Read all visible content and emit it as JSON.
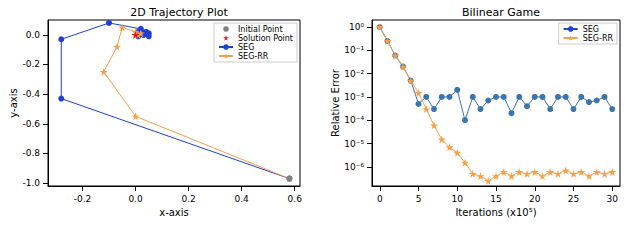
{
  "chart_data": [
    {
      "type": "line",
      "title": "2D Trajectory Plot",
      "x_label": "x-axis",
      "y_label": "y-axis",
      "xlim": [
        -0.33,
        0.62
      ],
      "xticks": [
        -0.2,
        {
          "value": 0,
          "label": "0.0"
        },
        0.2,
        0.4,
        0.6
      ],
      "ylim": [
        -1.02,
        0.1
      ],
      "yticks": [
        {
          "value": -1,
          "label": "-1.0"
        },
        -0.8,
        -0.6,
        -0.4,
        -0.2,
        {
          "value": 0,
          "label": "0.0"
        }
      ],
      "grid": false,
      "legend": "upper right",
      "series": [
        {
          "name": "Initial Point",
          "color": "#808080",
          "marker": "circle",
          "line_style": "none",
          "x": [
            0.58
          ],
          "values": [
            -0.97
          ]
        },
        {
          "name": "Solution Point",
          "color": "#e41a1c",
          "marker": "star",
          "line_style": "none",
          "x": [
            0.0
          ],
          "values": [
            0.0
          ]
        },
        {
          "name": "SEG",
          "color": "#1f3fd6",
          "marker": "circle",
          "line_style": "solid",
          "x": [
            0.58,
            -0.28,
            -0.28,
            -0.1,
            0.02,
            0.05,
            0.01,
            0.04,
            0.02,
            0.05,
            0.03,
            0.01,
            0.04,
            0.03
          ],
          "values": [
            -0.97,
            -0.43,
            -0.03,
            0.08,
            0.04,
            0.01,
            -0.01,
            0.02,
            0.03,
            -0.01,
            0.0,
            0.02,
            0.01,
            0.0
          ]
        },
        {
          "name": "SEG-RR",
          "color": "#f5a04a",
          "marker": "star",
          "line_style": "solid",
          "x": [
            0.58,
            0.0,
            -0.12,
            -0.07,
            -0.05,
            0.0,
            0.02,
            0.01,
            0.0
          ],
          "values": [
            -0.97,
            -0.55,
            -0.25,
            -0.08,
            0.05,
            0.02,
            0.01,
            0.0,
            0.0
          ]
        }
      ]
    },
    {
      "type": "line",
      "title": "Bilinear Game",
      "x_label": "Iterations (x10⁵)",
      "y_label": "Relative Error",
      "log": "y",
      "xlim": [
        -1,
        31
      ],
      "xticks": [
        0,
        5,
        10,
        15,
        20,
        25,
        30
      ],
      "ylim": [
        1.5e-07,
        2
      ],
      "yticks": [
        {
          "value": 1e-06,
          "label": "10⁻⁶"
        },
        {
          "value": 1e-05,
          "label": "10⁻⁵"
        },
        {
          "value": 0.0001,
          "label": "10⁻⁴"
        },
        {
          "value": 0.001,
          "label": "10⁻³"
        },
        {
          "value": 0.01,
          "label": "10⁻²"
        },
        {
          "value": 0.1,
          "label": "10⁻¹"
        },
        {
          "value": 1,
          "label": "10⁰"
        }
      ],
      "grid": false,
      "legend": "upper right",
      "series": [
        {
          "name": "SEG",
          "color": "#3b75af",
          "marker": "circle",
          "line_style": "solid",
          "x": [
            0,
            1,
            2,
            3,
            4,
            5,
            6,
            7,
            8,
            9,
            10,
            11,
            12,
            13,
            14,
            15,
            16,
            17,
            18,
            19,
            20,
            21,
            22,
            23,
            24,
            25,
            26,
            27,
            28,
            29,
            30
          ],
          "values": [
            1,
            0.25,
            0.06,
            0.02,
            0.005,
            0.0005,
            0.001,
            0.0003,
            0.001,
            0.001,
            0.002,
            0.0001,
            0.001,
            0.0003,
            0.0007,
            0.001,
            0.001,
            0.0002,
            0.001,
            0.0004,
            0.001,
            0.001,
            0.0003,
            0.001,
            0.001,
            0.0003,
            0.001,
            0.0006,
            0.0007,
            0.001,
            0.0003
          ]
        },
        {
          "name": "SEG-RR",
          "color": "#f5a04a",
          "marker": "star",
          "line_style": "solid",
          "x": [
            0,
            1,
            2,
            3,
            4,
            5,
            6,
            7,
            8,
            9,
            10,
            11,
            12,
            13,
            14,
            15,
            16,
            17,
            18,
            19,
            20,
            21,
            22,
            23,
            24,
            25,
            26,
            27,
            28,
            29,
            30
          ],
          "values": [
            1,
            0.25,
            0.06,
            0.02,
            0.005,
            0.0015,
            0.0003,
            6e-05,
            1.5e-05,
            7e-06,
            4e-06,
            1.5e-06,
            5e-07,
            4e-07,
            2.5e-07,
            4e-07,
            6e-07,
            4e-07,
            6e-07,
            5e-07,
            6e-07,
            4e-07,
            6e-07,
            5e-07,
            7e-07,
            5e-07,
            6e-07,
            4e-07,
            6e-07,
            5e-07,
            6e-07
          ]
        }
      ]
    }
  ]
}
